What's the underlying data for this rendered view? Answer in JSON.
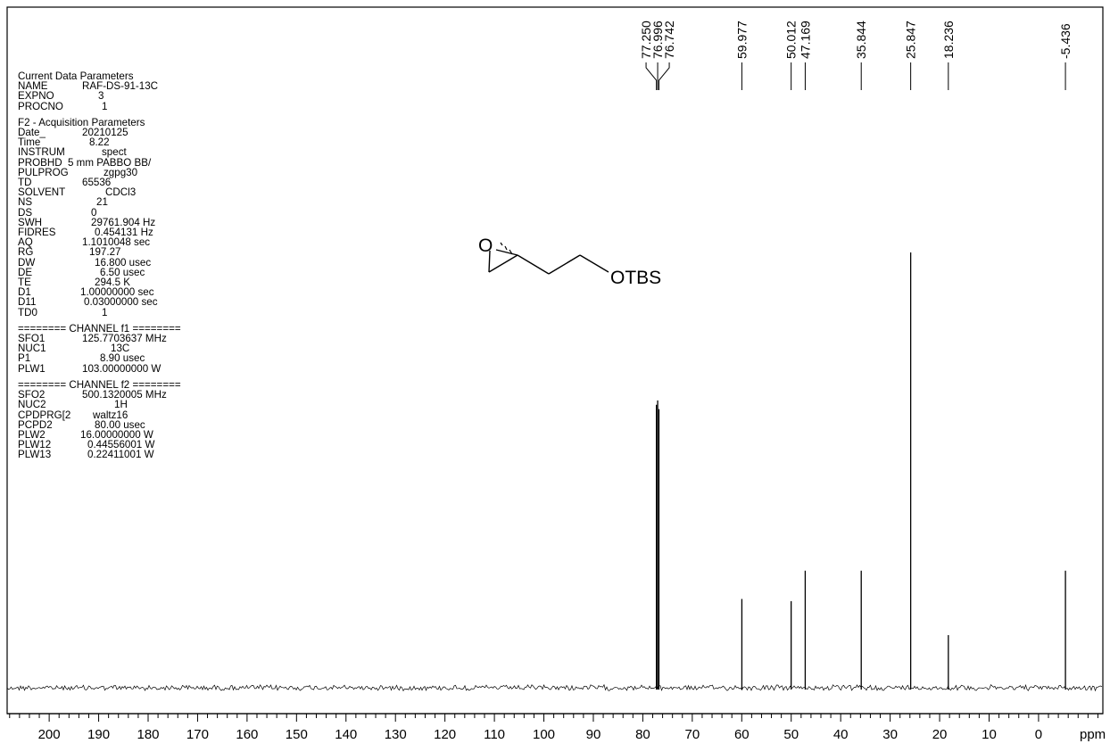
{
  "parameters": {
    "current": {
      "title": "Current Data Parameters",
      "rows": [
        {
          "k": "NAME",
          "v": "RAF-DS-91-13C",
          "pad": 0
        },
        {
          "k": "EXPNO",
          "v": "3",
          "pad": 18
        },
        {
          "k": "PROCNO",
          "v": "1",
          "pad": 22
        }
      ]
    },
    "acquisition": {
      "title": "F2 - Acquisition Parameters",
      "rows": [
        {
          "k": "Date_",
          "v": "20210125",
          "pad": 0
        },
        {
          "k": "Time",
          "v": "8.22",
          "pad": 8
        },
        {
          "k": "INSTRUM",
          "v": "spect",
          "pad": 22
        },
        {
          "k": "PROBHD",
          "v": "5 mm PABBO BB/",
          "pad": -16
        },
        {
          "k": "PULPROG",
          "v": "zgpg30",
          "pad": 24
        },
        {
          "k": "TD",
          "v": "65536",
          "pad": 0
        },
        {
          "k": "SOLVENT",
          "v": "CDCl3",
          "pad": 26
        },
        {
          "k": "NS",
          "v": "21",
          "pad": 16
        },
        {
          "k": "DS",
          "v": "0",
          "pad": 10
        },
        {
          "k": "SWH",
          "v": "29761.904 Hz",
          "pad": 10
        },
        {
          "k": "FIDRES",
          "v": "0.454131 Hz",
          "pad": 14
        },
        {
          "k": "AQ",
          "v": "1.1010048 sec",
          "pad": 0
        },
        {
          "k": "RG",
          "v": "197.27",
          "pad": 8
        },
        {
          "k": "DW",
          "v": "16.800 usec",
          "pad": 14
        },
        {
          "k": "DE",
          "v": "6.50 usec",
          "pad": 20
        },
        {
          "k": "TE",
          "v": "294.5 K",
          "pad": 14
        },
        {
          "k": "D1",
          "v": "1.00000000 sec",
          "pad": -2
        },
        {
          "k": "D11",
          "v": "0.03000000 sec",
          "pad": 2
        },
        {
          "k": "TD0",
          "v": "1",
          "pad": 22
        }
      ]
    },
    "channel1": {
      "title": "======== CHANNEL f1 ========",
      "rows": [
        {
          "k": "SFO1",
          "v": "125.7703637 MHz",
          "pad": 0
        },
        {
          "k": "NUC1",
          "v": "13C",
          "pad": 32
        },
        {
          "k": "P1",
          "v": "8.90 usec",
          "pad": 20
        },
        {
          "k": "PLW1",
          "v": "103.00000000 W",
          "pad": 0
        }
      ]
    },
    "channel2": {
      "title": "======== CHANNEL f2 ========",
      "rows": [
        {
          "k": "SFO2",
          "v": "500.1320005 MHz",
          "pad": 0
        },
        {
          "k": "NUC2",
          "v": "1H",
          "pad": 36
        },
        {
          "k": "CPDPRG[2",
          "v": "waltz16",
          "pad": 12
        },
        {
          "k": "PCPD2",
          "v": "80.00 usec",
          "pad": 14
        },
        {
          "k": "PLW2",
          "v": "16.00000000 W",
          "pad": -2
        },
        {
          "k": "PLW12",
          "v": "0.44556001 W",
          "pad": 6
        },
        {
          "k": "PLW13",
          "v": "0.22411001 W",
          "pad": 6
        }
      ]
    }
  },
  "molecule": {
    "atom_o_ring": "O",
    "substituent": "OTBS"
  },
  "chart_data": {
    "type": "nmr-spectrum",
    "x_unit": "ppm",
    "xlim": [
      208.5,
      -13
    ],
    "x_ticks": [
      200,
      190,
      180,
      170,
      160,
      150,
      140,
      130,
      120,
      110,
      100,
      90,
      80,
      70,
      60,
      50,
      40,
      30,
      20,
      10,
      0
    ],
    "x_tick_labels": [
      "200",
      "190",
      "180",
      "170",
      "160",
      "150",
      "140",
      "130",
      "120",
      "110",
      "100",
      "90",
      "80",
      "70",
      "60",
      "50",
      "40",
      "30",
      "20",
      "10",
      "0"
    ],
    "x_minor_step": 2,
    "baseline_intensity": 0,
    "peaks": [
      {
        "shift": 77.25,
        "label": "77.250",
        "intensity": 0.65
      },
      {
        "shift": 76.996,
        "label": "76.996",
        "intensity": 0.66
      },
      {
        "shift": 76.742,
        "label": "76.742",
        "intensity": 0.64
      },
      {
        "shift": 59.977,
        "label": "59.977",
        "intensity": 0.204
      },
      {
        "shift": 50.012,
        "label": "50.012",
        "intensity": 0.199
      },
      {
        "shift": 47.169,
        "label": "47.169",
        "intensity": 0.269
      },
      {
        "shift": 35.844,
        "label": "35.844",
        "intensity": 0.269
      },
      {
        "shift": 25.847,
        "label": "25.847",
        "intensity": 1.0
      },
      {
        "shift": 18.236,
        "label": "18.236",
        "intensity": 0.121
      },
      {
        "shift": -5.436,
        "label": "-5.436",
        "intensity": 0.269
      }
    ]
  }
}
